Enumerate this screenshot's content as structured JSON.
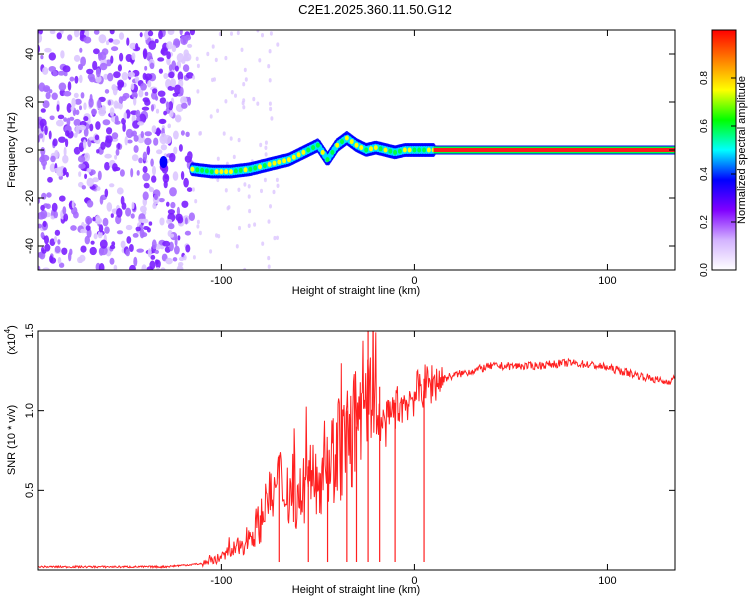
{
  "title": "C2E1.2025.360.11.50.G12",
  "chart_data": [
    {
      "type": "heatmap",
      "title": "C2E1.2025.360.11.50.G12",
      "xlabel": "Height of straight line (km)",
      "ylabel": "Frequency (Hz)",
      "xlim": [
        -195,
        135
      ],
      "ylim": [
        -50,
        50
      ],
      "xticks": [
        -100,
        0,
        100
      ],
      "yticks": [
        -40,
        -20,
        0,
        20,
        40
      ],
      "colorbar": {
        "label": "Normalized spectral amplitude",
        "range": [
          0.0,
          1.0
        ],
        "ticks": [
          0.0,
          0.2,
          0.4,
          0.6,
          0.8
        ],
        "colors": [
          "#ffffff",
          "#d3b3ff",
          "#8000ff",
          "#0000ff",
          "#00ffff",
          "#00ff00",
          "#ffff00",
          "#ff8000",
          "#ff0000"
        ]
      },
      "ridge": {
        "x": [
          -115,
          -105,
          -95,
          -85,
          -75,
          -65,
          -55,
          -50,
          -45,
          -40,
          -35,
          -30,
          -25,
          -20,
          -15,
          -10,
          -5,
          0,
          5,
          10,
          135
        ],
        "y": [
          -8,
          -9,
          -9,
          -8,
          -6,
          -4,
          0,
          2,
          -4,
          2,
          5,
          2,
          0,
          1,
          0,
          -1,
          0,
          0,
          0,
          0,
          0
        ]
      },
      "noise_region_x": [
        -195,
        -115
      ],
      "line_from_x": 10
    },
    {
      "type": "line",
      "xlabel": "Height of straight line (km)",
      "ylabel": "SNR (10 * v/v)",
      "multiplier_label": "(x10",
      "multiplier_exp": "4",
      "xlim": [
        -195,
        135
      ],
      "ylim": [
        0,
        1.5
      ],
      "xticks": [
        -100,
        0,
        100
      ],
      "yticks": [
        0.5,
        1.0,
        1.5
      ],
      "yticklabels": [
        "0.5",
        "1.0",
        "1.5"
      ],
      "color": "#ff2020",
      "series": [
        {
          "name": "SNR",
          "x": [
            -195,
            -130,
            -120,
            -110,
            -100,
            -90,
            -80,
            -70,
            -60,
            -50,
            -40,
            -30,
            -20,
            -15,
            -10,
            -5,
            0,
            5,
            10,
            15,
            20,
            30,
            40,
            50,
            60,
            70,
            80,
            90,
            100,
            110,
            120,
            130,
            135
          ],
          "y": [
            0.02,
            0.02,
            0.03,
            0.04,
            0.08,
            0.15,
            0.3,
            0.55,
            0.45,
            0.6,
            0.75,
            0.9,
            0.95,
            0.9,
            1.02,
            1.05,
            1.1,
            1.15,
            1.18,
            1.2,
            1.22,
            1.25,
            1.28,
            1.28,
            1.28,
            1.29,
            1.3,
            1.29,
            1.27,
            1.24,
            1.21,
            1.18,
            1.2
          ]
        }
      ],
      "spikes": [
        {
          "x": -70,
          "y": 0.72
        },
        {
          "x": -55,
          "y": 0.65
        },
        {
          "x": -45,
          "y": 0.75
        },
        {
          "x": -35,
          "y": 1.0
        },
        {
          "x": -30,
          "y": 0.9
        },
        {
          "x": -24,
          "y": 1.52
        },
        {
          "x": -18,
          "y": 1.15
        },
        {
          "x": -10,
          "y": 1.05
        },
        {
          "x": 5,
          "y": 1.2
        }
      ]
    }
  ]
}
